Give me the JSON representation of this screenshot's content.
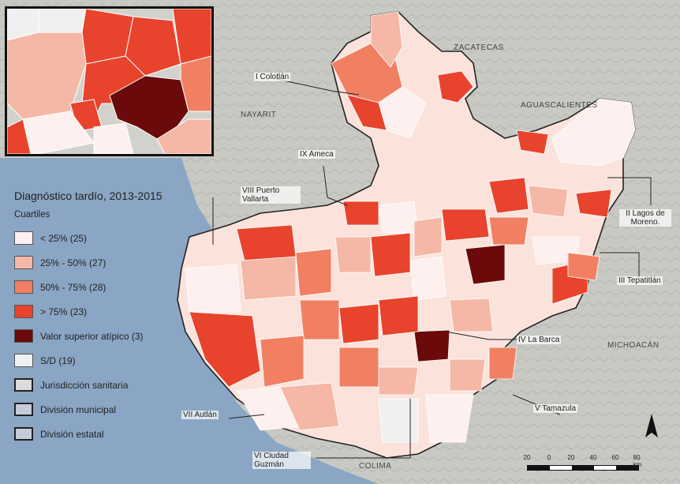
{
  "legend": {
    "title": "Diagnóstico tardío, 2013-2015",
    "subtitle": "Cuartiles",
    "items": [
      {
        "label": "< 25% (25)",
        "color": "#fdf0ee"
      },
      {
        "label": "25% - 50% (27)",
        "color": "#f5b8a6"
      },
      {
        "label": "50% - 75% (28)",
        "color": "#f18063"
      },
      {
        "label": "> 75% (23)",
        "color": "#e8432c"
      },
      {
        "label": "Valor superior atípico (3)",
        "color": "#6b0a0a"
      },
      {
        "label": "S/D (19)",
        "color": "#f0f0f0"
      },
      {
        "label": "Jurisdicción sanitaria",
        "color": "#dcdcdc"
      },
      {
        "label": "División municipal",
        "color": "#c6ccd8"
      },
      {
        "label": "División estatal",
        "color": "#c6ccd8"
      }
    ]
  },
  "regions": {
    "r1": "I Colotlán",
    "r2": "II Lagos de Moreno.",
    "r3": "III Tepatitlán",
    "r4": "IV La Barca",
    "r5": "V Tamazula",
    "r6": "VI Ciudad Guzmán",
    "r7": "VII Autlán",
    "r8": "VIII Puerto Vallarta",
    "r9": "IX Ameca"
  },
  "states": {
    "zacatecas": "ZACATECAS",
    "aguascalientes": "AGUASCALIENTES",
    "nayarit": "NAYARIT",
    "michoacan": "MICHOACÁN",
    "colima": "COLIMA"
  },
  "scale": {
    "ticks": [
      "20",
      "0",
      "20",
      "40",
      "60",
      "80 km"
    ]
  },
  "north_arrow": "N"
}
